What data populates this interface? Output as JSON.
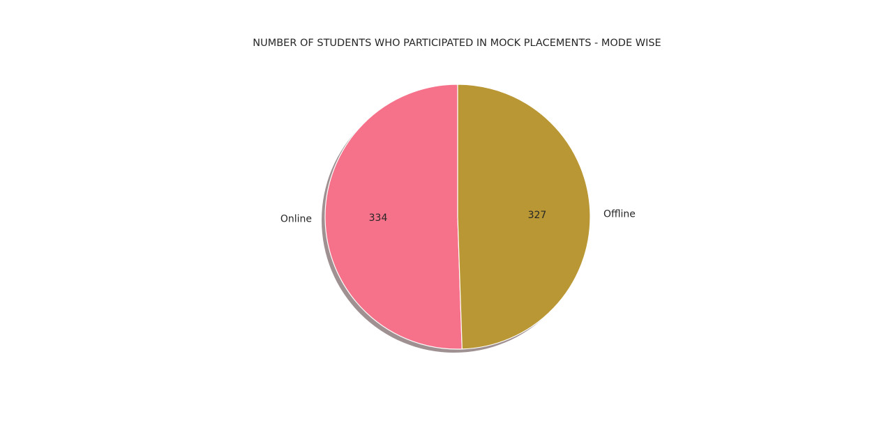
{
  "chart_data": {
    "type": "pie",
    "title": "NUMBER OF STUDENTS WHO PARTICIPATED IN MOCK PLACEMENTS - MODE WISE",
    "categories": [
      "Online",
      "Offline"
    ],
    "values": [
      334,
      327
    ],
    "value_labels": [
      "334",
      "327"
    ],
    "colors": [
      "#f6718a",
      "#b99734"
    ],
    "start_angle_deg": 90,
    "direction": "counterclockwise",
    "shadow": true,
    "legend": "none"
  }
}
